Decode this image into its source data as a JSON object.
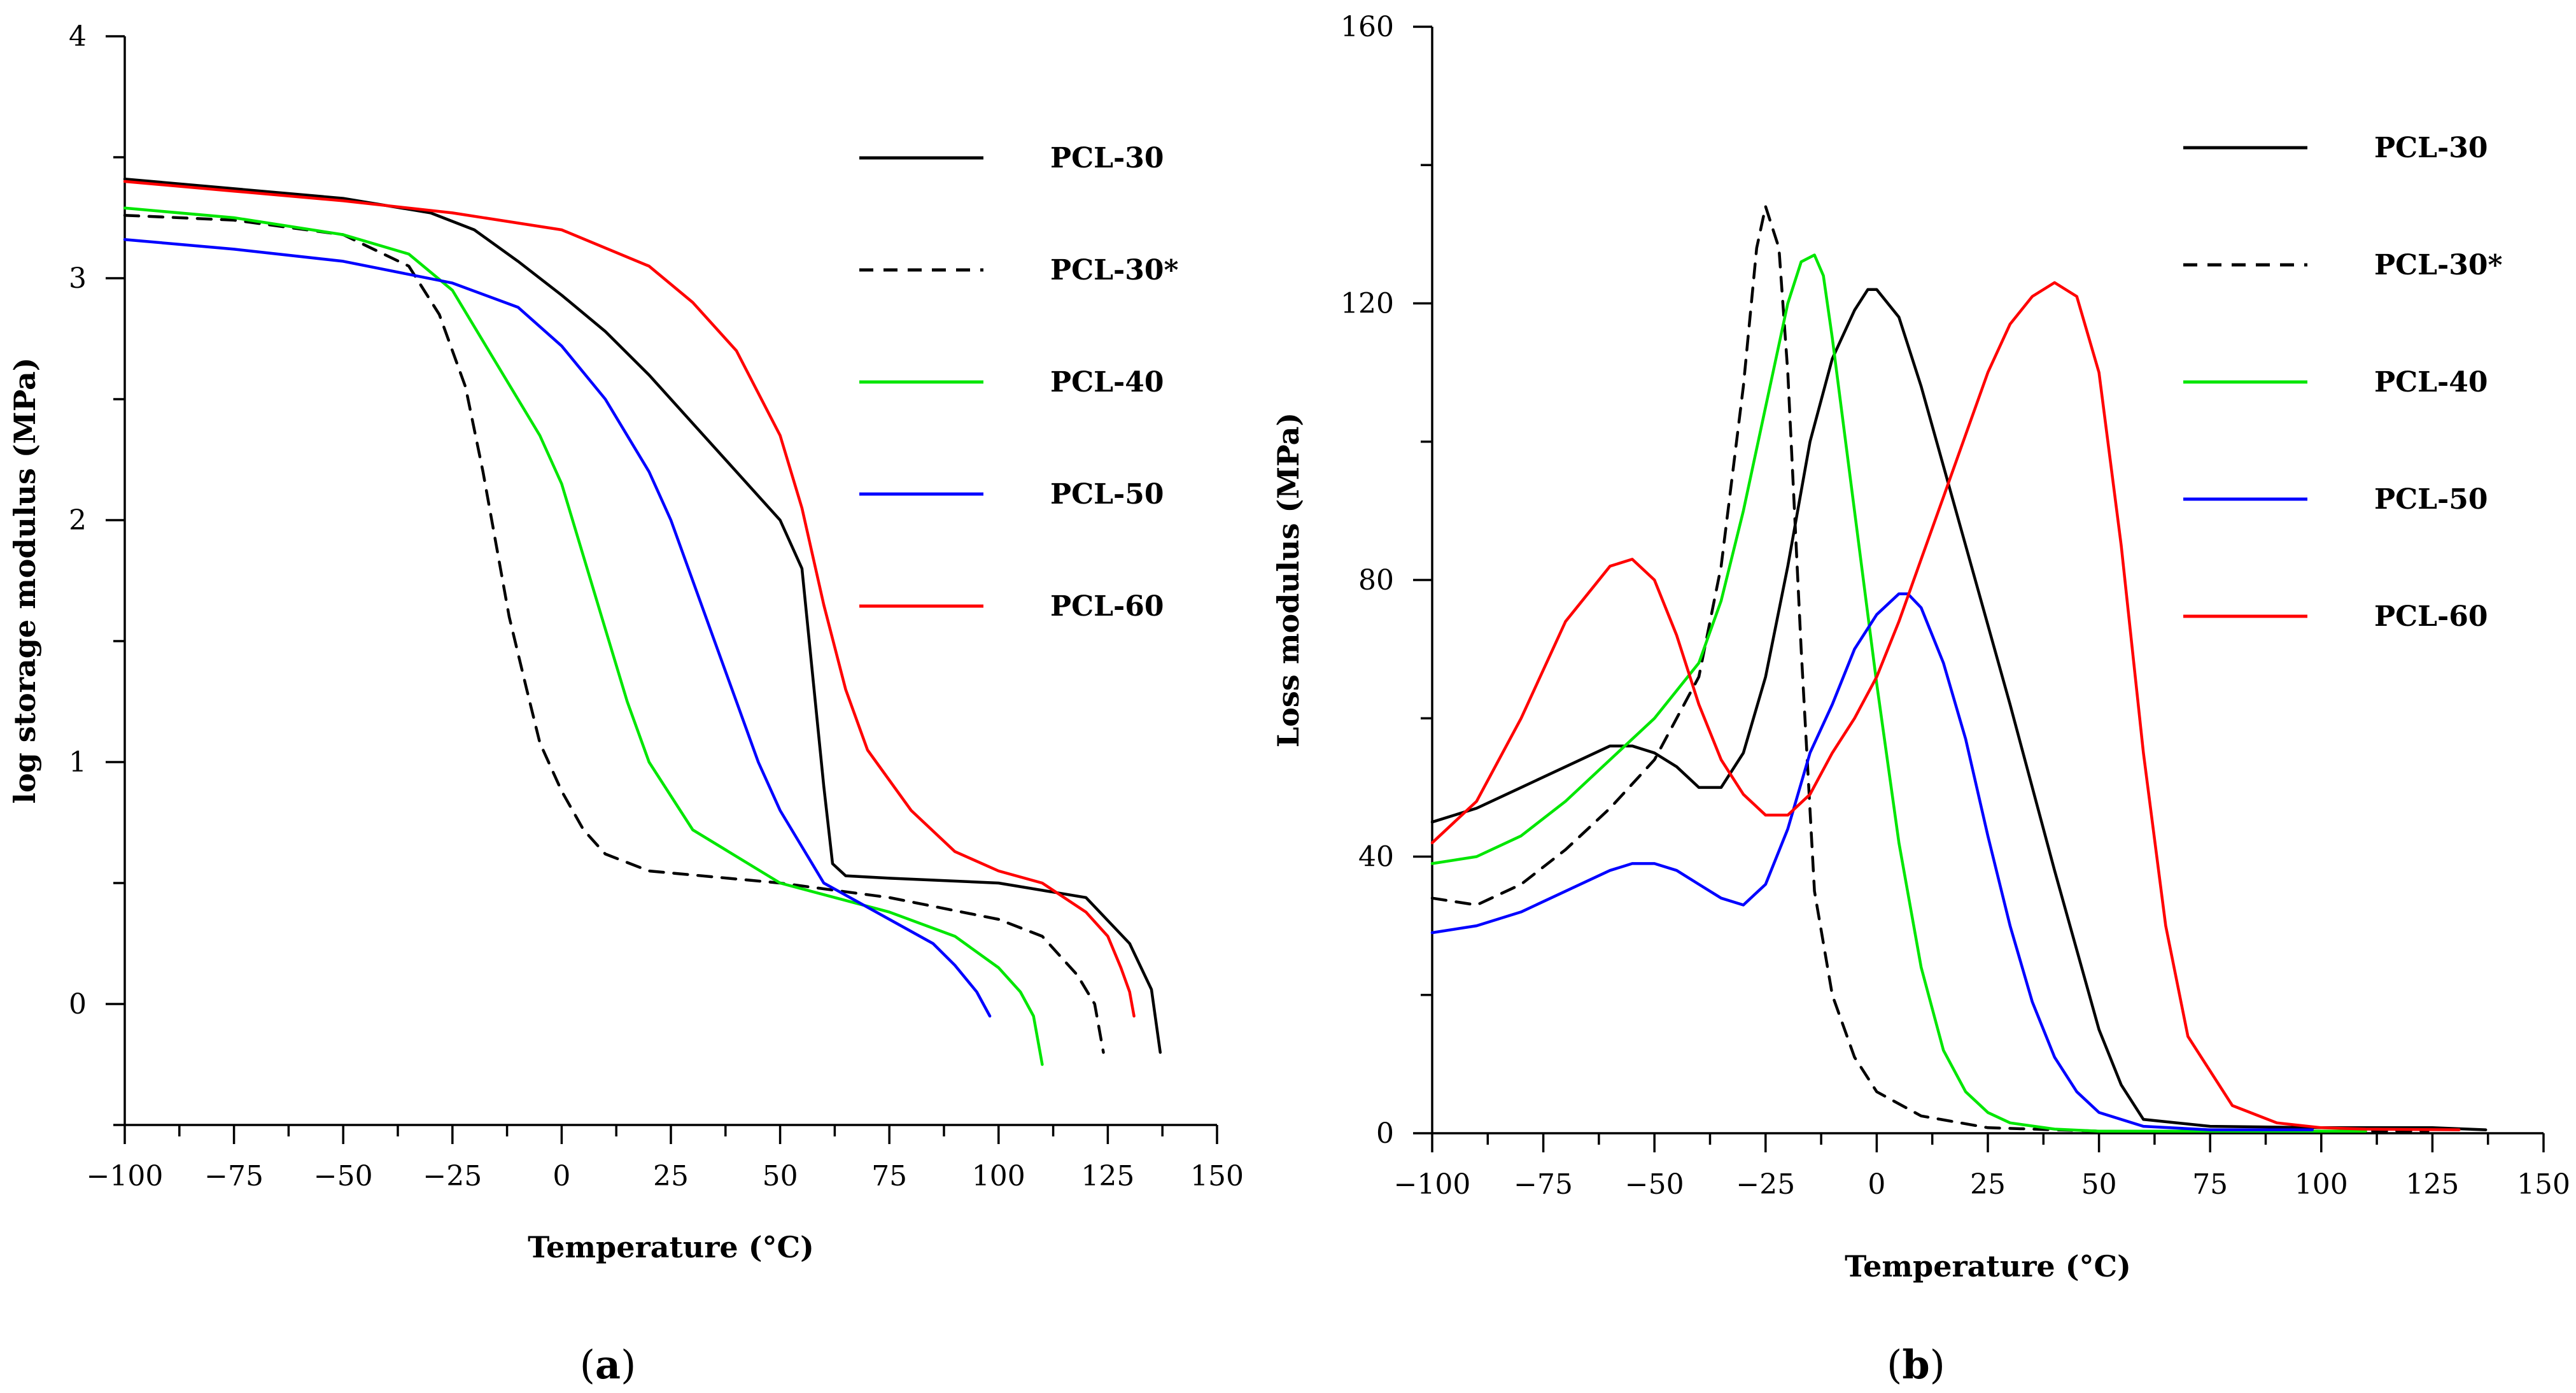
{
  "chart_data": [
    {
      "type": "line",
      "panel_label": "(a)",
      "xlabel": "Temperature (°C)",
      "ylabel": "log storage modulus (MPa)",
      "xlim": [
        -100,
        150
      ],
      "ylim": [
        -0.5,
        4
      ],
      "xticks": [
        -100,
        -75,
        -50,
        -25,
        0,
        25,
        50,
        75,
        100,
        125,
        150
      ],
      "xtick_labels": [
        "−100",
        "−75",
        "−50",
        "−25",
        "0",
        "25",
        "50",
        "75",
        "100",
        "125",
        "150"
      ],
      "yticks": [
        0,
        1,
        2,
        3,
        4
      ],
      "ytick_labels": [
        "0",
        "1",
        "2",
        "3",
        "4"
      ],
      "legend_position": "top-right",
      "series": [
        {
          "name": "PCL-30",
          "color": "#000000",
          "dash": false,
          "x": [
            -100,
            -75,
            -50,
            -30,
            -20,
            -10,
            0,
            10,
            20,
            30,
            40,
            50,
            55,
            60,
            62,
            65,
            75,
            100,
            120,
            130,
            135,
            137
          ],
          "y": [
            3.41,
            3.37,
            3.33,
            3.27,
            3.2,
            3.07,
            2.93,
            2.78,
            2.6,
            2.4,
            2.2,
            2.0,
            1.8,
            0.9,
            0.58,
            0.53,
            0.52,
            0.5,
            0.44,
            0.25,
            0.06,
            -0.2
          ]
        },
        {
          "name": "PCL-30*",
          "color": "#000000",
          "dash": true,
          "x": [
            -100,
            -75,
            -50,
            -35,
            -28,
            -22,
            -18,
            -15,
            -12,
            -8,
            -5,
            0,
            5,
            10,
            20,
            50,
            75,
            100,
            110,
            118,
            122,
            124
          ],
          "y": [
            3.26,
            3.24,
            3.18,
            3.05,
            2.85,
            2.55,
            2.2,
            1.9,
            1.6,
            1.3,
            1.08,
            0.88,
            0.72,
            0.62,
            0.55,
            0.5,
            0.44,
            0.35,
            0.28,
            0.12,
            0.0,
            -0.2
          ]
        },
        {
          "name": "PCL-40",
          "color": "#00e600",
          "dash": false,
          "x": [
            -100,
            -75,
            -50,
            -35,
            -25,
            -15,
            -5,
            0,
            5,
            10,
            15,
            20,
            30,
            50,
            75,
            90,
            100,
            105,
            108,
            110
          ],
          "y": [
            3.29,
            3.25,
            3.18,
            3.1,
            2.95,
            2.65,
            2.35,
            2.15,
            1.85,
            1.55,
            1.25,
            1.0,
            0.72,
            0.5,
            0.38,
            0.28,
            0.15,
            0.05,
            -0.05,
            -0.25
          ]
        },
        {
          "name": "PCL-50",
          "color": "#0000ff",
          "dash": false,
          "x": [
            -100,
            -75,
            -50,
            -25,
            -10,
            0,
            10,
            20,
            25,
            30,
            35,
            40,
            45,
            50,
            60,
            75,
            85,
            90,
            95,
            98
          ],
          "y": [
            3.16,
            3.12,
            3.07,
            2.98,
            2.88,
            2.72,
            2.5,
            2.2,
            2.0,
            1.75,
            1.5,
            1.25,
            1.0,
            0.8,
            0.5,
            0.35,
            0.25,
            0.16,
            0.05,
            -0.05
          ]
        },
        {
          "name": "PCL-60",
          "color": "#ff0000",
          "dash": false,
          "x": [
            -100,
            -75,
            -50,
            -25,
            0,
            20,
            30,
            40,
            50,
            55,
            60,
            65,
            70,
            80,
            90,
            100,
            110,
            120,
            125,
            128,
            130,
            131
          ],
          "y": [
            3.4,
            3.36,
            3.32,
            3.27,
            3.2,
            3.05,
            2.9,
            2.7,
            2.35,
            2.05,
            1.65,
            1.3,
            1.05,
            0.8,
            0.63,
            0.55,
            0.5,
            0.38,
            0.28,
            0.15,
            0.05,
            -0.05
          ]
        }
      ]
    },
    {
      "type": "line",
      "panel_label": "(b)",
      "xlabel": "Temperature (°C)",
      "ylabel": "Loss modulus (MPa)",
      "xlim": [
        -100,
        150
      ],
      "ylim": [
        0,
        160
      ],
      "xticks": [
        -100,
        -75,
        -50,
        -25,
        0,
        25,
        50,
        75,
        100,
        125,
        150
      ],
      "xtick_labels": [
        "−100",
        "−75",
        "−50",
        "−25",
        "0",
        "25",
        "50",
        "75",
        "100",
        "125",
        "150"
      ],
      "yticks": [
        0,
        40,
        80,
        120,
        160
      ],
      "ytick_labels": [
        "0",
        "40",
        "80",
        "120",
        "160"
      ],
      "legend_position": "top-right",
      "series": [
        {
          "name": "PCL-30",
          "color": "#000000",
          "dash": false,
          "x": [
            -100,
            -90,
            -80,
            -70,
            -60,
            -55,
            -50,
            -45,
            -40,
            -35,
            -30,
            -25,
            -20,
            -15,
            -10,
            -5,
            -2,
            0,
            5,
            10,
            20,
            30,
            40,
            50,
            55,
            60,
            75,
            100,
            125,
            137
          ],
          "y": [
            45,
            47,
            50,
            53,
            56,
            56,
            55,
            53,
            50,
            50,
            55,
            66,
            82,
            100,
            112,
            119,
            122,
            122,
            118,
            108,
            85,
            62,
            38,
            15,
            7,
            2,
            1,
            0.8,
            0.8,
            0.5
          ]
        },
        {
          "name": "PCL-30*",
          "color": "#000000",
          "dash": true,
          "x": [
            -100,
            -90,
            -80,
            -70,
            -60,
            -50,
            -40,
            -35,
            -30,
            -27,
            -25,
            -22,
            -20,
            -17,
            -14,
            -10,
            -5,
            0,
            10,
            25,
            50,
            75,
            100,
            124
          ],
          "y": [
            34,
            33,
            36,
            41,
            47,
            54,
            66,
            82,
            108,
            128,
            134,
            128,
            110,
            70,
            35,
            20,
            11,
            6,
            2.5,
            0.8,
            0.3,
            0.3,
            0.3,
            0.3
          ]
        },
        {
          "name": "PCL-40",
          "color": "#00e600",
          "dash": false,
          "x": [
            -100,
            -90,
            -80,
            -70,
            -60,
            -50,
            -40,
            -35,
            -30,
            -25,
            -20,
            -17,
            -14,
            -12,
            -10,
            -5,
            0,
            5,
            10,
            15,
            20,
            25,
            30,
            40,
            50,
            75,
            100,
            110
          ],
          "y": [
            39,
            40,
            43,
            48,
            54,
            60,
            68,
            77,
            90,
            105,
            120,
            126,
            127,
            124,
            115,
            90,
            65,
            42,
            24,
            12,
            6,
            3,
            1.5,
            0.6,
            0.3,
            0.3,
            0.3,
            0.3
          ]
        },
        {
          "name": "PCL-50",
          "color": "#0000ff",
          "dash": false,
          "x": [
            -100,
            -90,
            -80,
            -70,
            -60,
            -55,
            -50,
            -45,
            -40,
            -35,
            -30,
            -25,
            -20,
            -15,
            -10,
            -5,
            0,
            5,
            7,
            10,
            15,
            20,
            25,
            30,
            35,
            40,
            45,
            50,
            60,
            75,
            98
          ],
          "y": [
            29,
            30,
            32,
            35,
            38,
            39,
            39,
            38,
            36,
            34,
            33,
            36,
            44,
            55,
            62,
            70,
            75,
            78,
            78,
            76,
            68,
            57,
            43,
            30,
            19,
            11,
            6,
            3,
            1,
            0.5,
            0.5
          ]
        },
        {
          "name": "PCL-60",
          "color": "#ff0000",
          "dash": false,
          "x": [
            -100,
            -90,
            -80,
            -70,
            -60,
            -55,
            -50,
            -45,
            -40,
            -35,
            -30,
            -25,
            -20,
            -15,
            -10,
            -5,
            0,
            5,
            10,
            15,
            20,
            25,
            30,
            35,
            40,
            45,
            50,
            55,
            60,
            65,
            70,
            80,
            90,
            100,
            110,
            131
          ],
          "y": [
            42,
            48,
            60,
            74,
            82,
            83,
            80,
            72,
            62,
            54,
            49,
            46,
            46,
            49,
            55,
            60,
            66,
            74,
            83,
            92,
            101,
            110,
            117,
            121,
            123,
            121,
            110,
            85,
            55,
            30,
            14,
            4,
            1.5,
            0.8,
            0.6,
            0.5
          ]
        }
      ]
    }
  ]
}
